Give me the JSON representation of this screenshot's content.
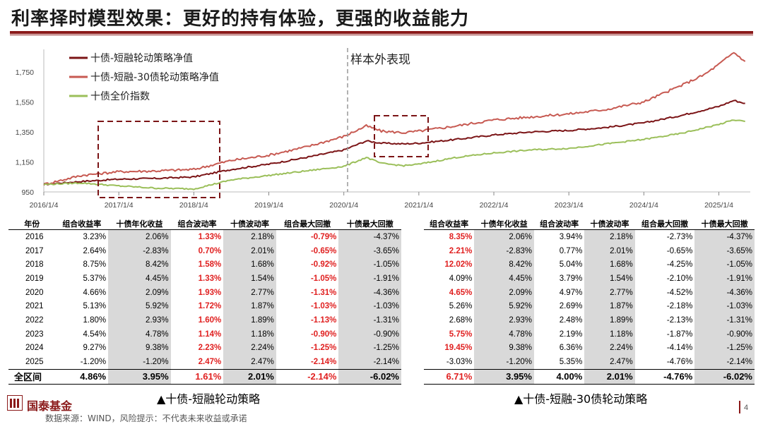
{
  "title": "利率择时模型效果：更好的持有体验，更强的收益能力",
  "colors": {
    "s1": "#7b1416",
    "s2": "#c75a52",
    "s3": "#9bbf5a",
    "accent": "#8b1a1a",
    "red": "#e02020"
  },
  "chart_data": {
    "type": "line",
    "x_ticks": [
      "2016/1/4",
      "2017/1/4",
      "2018/1/4",
      "2019/1/4",
      "2020/1/4",
      "2021/1/4",
      "2022/1/4",
      "2023/1/4",
      "2024/1/4",
      "2025/1/4"
    ],
    "y_ticks": [
      "950",
      "1,150",
      "1,350",
      "1,550",
      "1,750"
    ],
    "ylim": [
      950,
      1900
    ],
    "annotation": "样本外表现",
    "series": [
      {
        "name": "十债-短融轮动策略净值",
        "color": "#7b1416",
        "points": [
          [
            2016.0,
            1000
          ],
          [
            2016.5,
            1020
          ],
          [
            2017.0,
            1035
          ],
          [
            2017.5,
            1040
          ],
          [
            2018.0,
            1050
          ],
          [
            2018.5,
            1100
          ],
          [
            2019.0,
            1135
          ],
          [
            2019.5,
            1180
          ],
          [
            2020.0,
            1230
          ],
          [
            2020.3,
            1290
          ],
          [
            2020.5,
            1275
          ],
          [
            2020.8,
            1270
          ],
          [
            2021.0,
            1275
          ],
          [
            2021.5,
            1300
          ],
          [
            2022.0,
            1330
          ],
          [
            2022.5,
            1350
          ],
          [
            2023.0,
            1360
          ],
          [
            2023.5,
            1380
          ],
          [
            2024.0,
            1410
          ],
          [
            2024.5,
            1460
          ],
          [
            2025.0,
            1520
          ],
          [
            2025.2,
            1560
          ],
          [
            2025.35,
            1540
          ]
        ]
      },
      {
        "name": "十债-短融-30债轮动策略净值",
        "color": "#c75a52",
        "points": [
          [
            2016.0,
            1000
          ],
          [
            2016.5,
            1060
          ],
          [
            2017.0,
            1085
          ],
          [
            2017.5,
            1090
          ],
          [
            2018.0,
            1100
          ],
          [
            2018.5,
            1160
          ],
          [
            2019.0,
            1195
          ],
          [
            2019.5,
            1250
          ],
          [
            2020.0,
            1320
          ],
          [
            2020.3,
            1390
          ],
          [
            2020.5,
            1355
          ],
          [
            2020.8,
            1345
          ],
          [
            2021.0,
            1355
          ],
          [
            2021.5,
            1390
          ],
          [
            2022.0,
            1430
          ],
          [
            2022.5,
            1450
          ],
          [
            2023.0,
            1470
          ],
          [
            2023.5,
            1500
          ],
          [
            2024.0,
            1550
          ],
          [
            2024.5,
            1660
          ],
          [
            2024.8,
            1730
          ],
          [
            2025.0,
            1800
          ],
          [
            2025.2,
            1880
          ],
          [
            2025.35,
            1820
          ]
        ]
      },
      {
        "name": "十债全价指数",
        "color": "#9bbf5a",
        "points": [
          [
            2016.0,
            1000
          ],
          [
            2016.5,
            1010
          ],
          [
            2017.0,
            990
          ],
          [
            2017.5,
            975
          ],
          [
            2018.0,
            970
          ],
          [
            2018.5,
            1030
          ],
          [
            2019.0,
            1060
          ],
          [
            2019.5,
            1090
          ],
          [
            2020.0,
            1120
          ],
          [
            2020.3,
            1180
          ],
          [
            2020.5,
            1140
          ],
          [
            2020.8,
            1125
          ],
          [
            2021.0,
            1135
          ],
          [
            2021.5,
            1180
          ],
          [
            2022.0,
            1210
          ],
          [
            2022.5,
            1230
          ],
          [
            2023.0,
            1240
          ],
          [
            2023.5,
            1270
          ],
          [
            2024.0,
            1300
          ],
          [
            2024.5,
            1340
          ],
          [
            2025.0,
            1400
          ],
          [
            2025.2,
            1430
          ],
          [
            2025.35,
            1420
          ]
        ]
      }
    ]
  },
  "left_table": {
    "headers": [
      "年份",
      "组合收益率",
      "十债年化收益",
      "组合波动率",
      "十债波动率",
      "组合最大回撤",
      "十债最大回撤"
    ],
    "rows": [
      [
        "2016",
        "3.23%",
        "2.06%",
        "1.33%",
        "2.18%",
        "-0.79%",
        "-4.37%"
      ],
      [
        "2017",
        "2.64%",
        "-2.83%",
        "0.70%",
        "2.01%",
        "-0.65%",
        "-3.65%"
      ],
      [
        "2018",
        "8.75%",
        "8.42%",
        "1.58%",
        "1.68%",
        "-0.92%",
        "-1.05%"
      ],
      [
        "2019",
        "5.37%",
        "4.45%",
        "1.33%",
        "1.54%",
        "-1.05%",
        "-1.91%"
      ],
      [
        "2020",
        "4.66%",
        "2.09%",
        "1.93%",
        "2.77%",
        "-1.31%",
        "-4.36%"
      ],
      [
        "2021",
        "5.13%",
        "5.92%",
        "1.72%",
        "1.87%",
        "-1.03%",
        "-1.03%"
      ],
      [
        "2022",
        "1.80%",
        "2.93%",
        "1.60%",
        "1.89%",
        "-1.13%",
        "-1.31%"
      ],
      [
        "2023",
        "4.54%",
        "4.78%",
        "1.14%",
        "1.18%",
        "-0.90%",
        "-0.90%"
      ],
      [
        "2024",
        "9.27%",
        "9.38%",
        "2.23%",
        "2.24%",
        "-1.25%",
        "-1.25%"
      ],
      [
        "2025",
        "-1.20%",
        "-1.20%",
        "2.47%",
        "2.47%",
        "-2.14%",
        "-2.14%"
      ]
    ],
    "total": [
      "全区间",
      "4.86%",
      "3.95%",
      "1.61%",
      "2.01%",
      "-2.14%",
      "-6.02%"
    ],
    "caption": "▲十债-短融轮动策略"
  },
  "right_table": {
    "headers": [
      "组合收益率",
      "十债年化收益",
      "组合波动率",
      "十债波动率",
      "组合最大回撤",
      "十债最大回撤"
    ],
    "rows": [
      [
        "8.35%",
        "2.06%",
        "3.94%",
        "2.18%",
        "-2.73%",
        "-4.37%"
      ],
      [
        "2.21%",
        "-2.83%",
        "0.77%",
        "2.01%",
        "-0.65%",
        "-3.65%"
      ],
      [
        "12.02%",
        "8.42%",
        "5.04%",
        "1.68%",
        "-4.25%",
        "-1.05%"
      ],
      [
        "4.09%",
        "4.45%",
        "3.79%",
        "1.54%",
        "-2.10%",
        "-1.91%"
      ],
      [
        "4.65%",
        "2.09%",
        "4.97%",
        "2.77%",
        "-4.52%",
        "-4.36%"
      ],
      [
        "5.26%",
        "5.92%",
        "2.69%",
        "1.87%",
        "-2.18%",
        "-1.03%"
      ],
      [
        "2.68%",
        "2.93%",
        "2.48%",
        "1.89%",
        "-2.13%",
        "-1.31%"
      ],
      [
        "5.75%",
        "4.78%",
        "2.19%",
        "1.18%",
        "-1.87%",
        "-0.90%"
      ],
      [
        "19.45%",
        "9.38%",
        "6.36%",
        "2.24%",
        "-4.14%",
        "-1.25%"
      ],
      [
        "-3.03%",
        "-1.20%",
        "5.35%",
        "2.47%",
        "-4.76%",
        "-2.14%"
      ]
    ],
    "total": [
      "6.71%",
      "3.95%",
      "4.00%",
      "2.01%",
      "-4.76%",
      "-6.02%"
    ],
    "caption": "▲十债-短融-30债轮动策略"
  },
  "footer": {
    "brand": "国泰基金",
    "note": "数据来源：WIND，风险提示：不代表未来收益或承诺",
    "page": "4"
  }
}
